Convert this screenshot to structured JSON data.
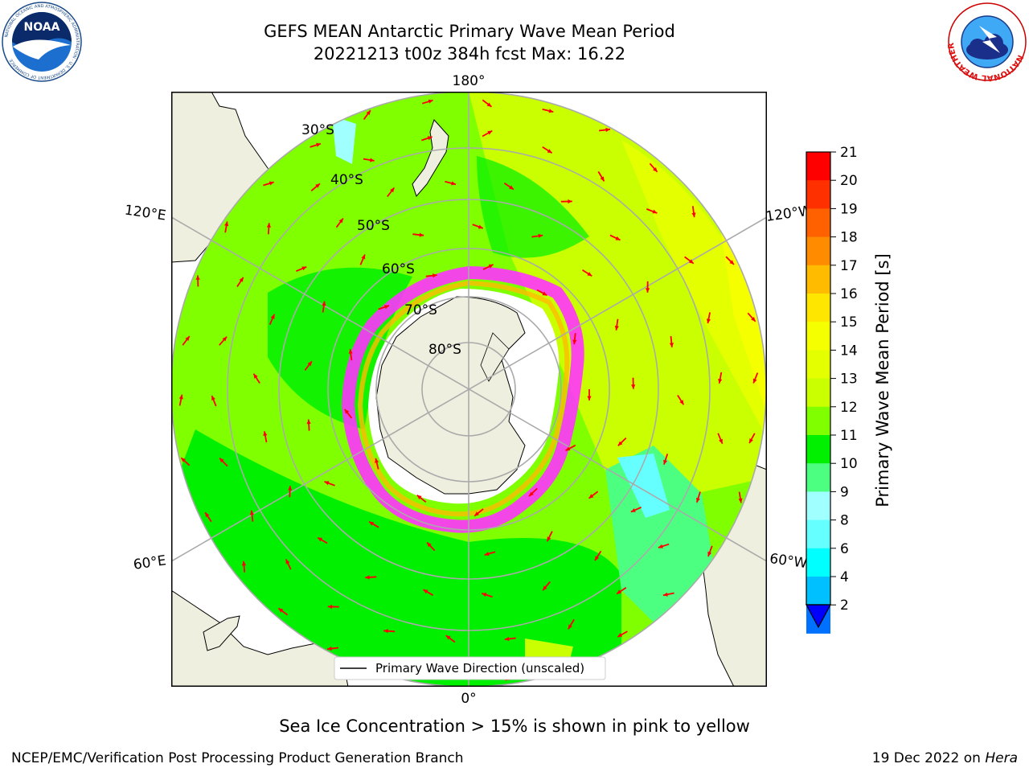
{
  "header": {
    "title": "GEFS MEAN Antarctic Primary Wave Mean Period",
    "subtitle": "20221213 t00z 384h fcst   Max: 16.22"
  },
  "logos": {
    "noaa": {
      "text": "NOAA",
      "ring_text": "NATIONAL OCEANIC AND ATMOSPHERIC ADMINISTRATION · U.S. DEPARTMENT OF COMMERCE"
    },
    "nws": {
      "ring_text": "NATIONAL WEATHER SERVICE"
    }
  },
  "map": {
    "projection": "south-polar-stereographic",
    "longitude_labels": {
      "top": "180°",
      "bottom": "0°",
      "upper_left": "120°E",
      "lower_left": "60°E",
      "upper_right": "120°W",
      "lower_right": "60°W"
    },
    "latitude_labels": [
      "30°S",
      "40°S",
      "50°S",
      "60°S",
      "70°S",
      "80°S"
    ],
    "legend": "Primary Wave Direction (unscaled)",
    "colors": {
      "land": "#efefdf",
      "ice_white": "#ffffff",
      "ice_pink": "#ff33ff"
    }
  },
  "colorbar": {
    "label": "Primary Wave Mean Period [s]",
    "ticks": [
      "21",
      "20",
      "19",
      "18",
      "17",
      "16",
      "15",
      "14",
      "13",
      "12",
      "11",
      "10",
      "9",
      "8",
      "6",
      "4",
      "2"
    ],
    "colors": [
      "#ff0000",
      "#ff3000",
      "#ff6000",
      "#ff8c00",
      "#ffbb00",
      "#ffe600",
      "#f6ff00",
      "#e4ff00",
      "#c9ff00",
      "#7fff00",
      "#00f000",
      "#4dff80",
      "#a0ffff",
      "#66ffff",
      "#00ffff",
      "#00c0ff",
      "#0070ff"
    ],
    "extend_color": "#0000ff"
  },
  "caption": "Sea Ice Concentration > 15% is shown in pink to yellow",
  "footer": {
    "left": "NCEP/EMC/Verification Post Processing Product Generation Branch",
    "right_date": "19 Dec 2022 on",
    "right_host": "Hera"
  }
}
